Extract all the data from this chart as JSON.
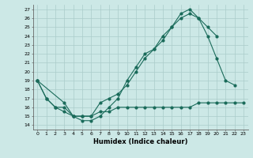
{
  "xlabel": "Humidex (Indice chaleur)",
  "bg_color": "#cce8e6",
  "line_color": "#1a6b5a",
  "grid_color": "#aaccca",
  "xlim": [
    -0.5,
    23.5
  ],
  "ylim": [
    13.5,
    27.5
  ],
  "yticks": [
    14,
    15,
    16,
    17,
    18,
    19,
    20,
    21,
    22,
    23,
    24,
    25,
    26,
    27
  ],
  "xticks": [
    0,
    1,
    2,
    3,
    4,
    5,
    6,
    7,
    8,
    9,
    10,
    11,
    12,
    13,
    14,
    15,
    16,
    17,
    18,
    19,
    20,
    21,
    22,
    23
  ],
  "line1_x": [
    0,
    1,
    2,
    3,
    4,
    5,
    6,
    7,
    8,
    9,
    10,
    11,
    12,
    13,
    14,
    15,
    16,
    17,
    18,
    19,
    20,
    21,
    22,
    23
  ],
  "line1_y": [
    19,
    17,
    16,
    15.5,
    15,
    15,
    15,
    15.5,
    15.5,
    16,
    16,
    16,
    16,
    16,
    16,
    16,
    16,
    16,
    16.5,
    16.5,
    16.5,
    16.5,
    16.5,
    16.5
  ],
  "line2_x": [
    0,
    1,
    2,
    3,
    4,
    5,
    6,
    7,
    8,
    9,
    10,
    11,
    12,
    13,
    14,
    15,
    16,
    17,
    18,
    19,
    20,
    21,
    22
  ],
  "line2_y": [
    19,
    17,
    16,
    16,
    15,
    14.5,
    14.5,
    15,
    16,
    17,
    19,
    20.5,
    22,
    22.5,
    24,
    25,
    26.5,
    27,
    26,
    24,
    21.5,
    19,
    18.5
  ],
  "line3_x": [
    0,
    3,
    4,
    5,
    6,
    7,
    8,
    9,
    10,
    11,
    12,
    13,
    14,
    15,
    16,
    17,
    18,
    19,
    20
  ],
  "line3_y": [
    19,
    16.5,
    15,
    15,
    15,
    16.5,
    17,
    17.5,
    18.5,
    20,
    21.5,
    22.5,
    23.5,
    25,
    26,
    26.5,
    26,
    25,
    24
  ]
}
